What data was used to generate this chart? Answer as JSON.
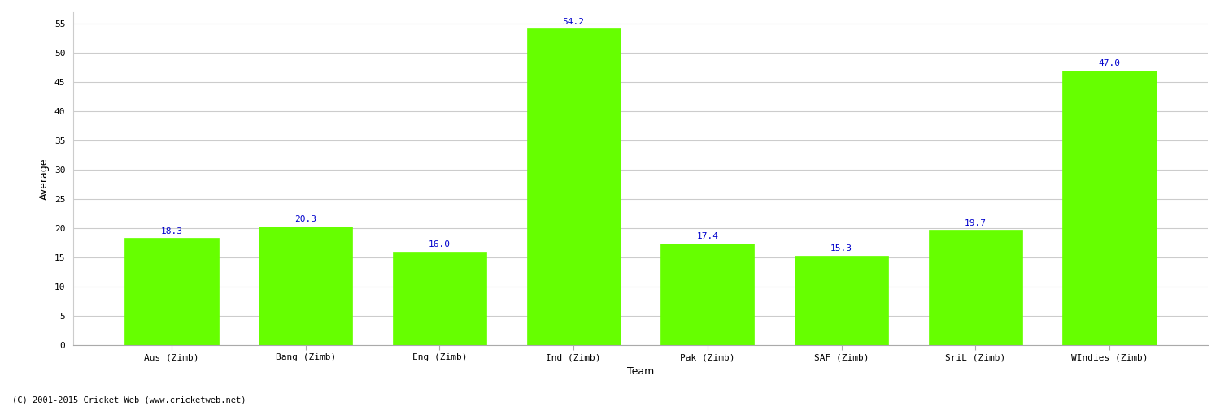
{
  "categories": [
    "Aus (Zimb)",
    "Bang (Zimb)",
    "Eng (Zimb)",
    "Ind (Zimb)",
    "Pak (Zimb)",
    "SAF (Zimb)",
    "SriL (Zimb)",
    "WIndies (Zimb)"
  ],
  "values": [
    18.3,
    20.3,
    16.0,
    54.2,
    17.4,
    15.3,
    19.7,
    47.0
  ],
  "bar_color": "#66ff00",
  "bar_edge_color": "#66ff00",
  "label_color": "#0000cc",
  "ylabel": "Average",
  "xlabel": "Team",
  "ylim": [
    0,
    57
  ],
  "yticks": [
    0,
    5,
    10,
    15,
    20,
    25,
    30,
    35,
    40,
    45,
    50,
    55
  ],
  "grid_color": "#cccccc",
  "background_color": "#ffffff",
  "label_fontsize": 8,
  "axis_label_fontsize": 9,
  "tick_fontsize": 8,
  "bar_width": 0.7,
  "footnote": "(C) 2001-2015 Cricket Web (www.cricketweb.net)"
}
